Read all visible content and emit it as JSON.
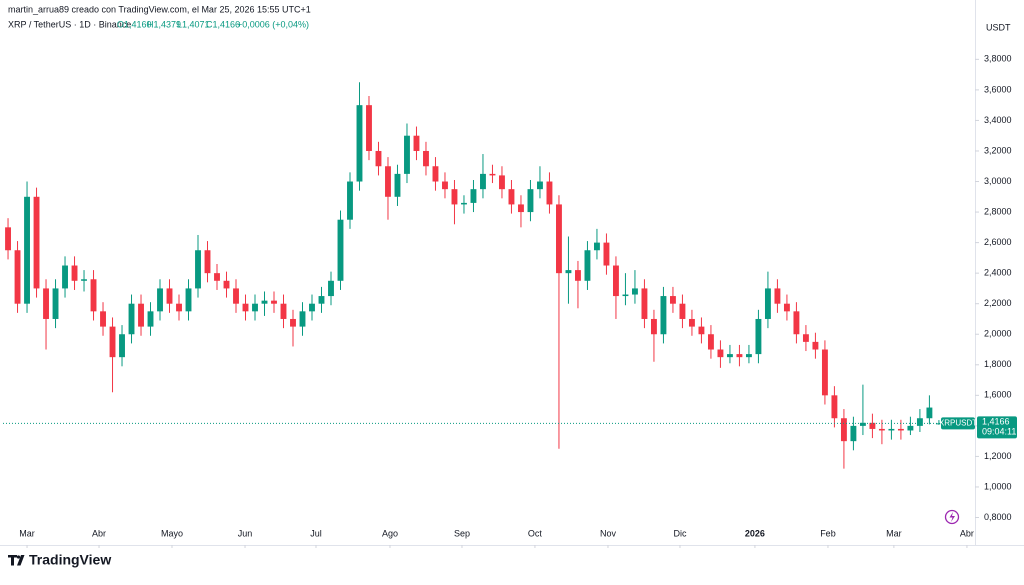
{
  "header": {
    "credit": "martin_arrua89 creado con TradingView.com, el Mar 25, 2026 15:55 UTC+1",
    "symbol": "XRP / TetherUS · 1D · Binance",
    "open": "O1,4160",
    "high": "H1,4379",
    "low": "L1,4071",
    "close": "C1,4166",
    "change": "+0,0006 (+0,04%)"
  },
  "chart_data": {
    "type": "candlestick",
    "currency": "USDT",
    "up_color": "#089981",
    "down_color": "#f23645",
    "ylim": [
      0.62,
      4.11
    ],
    "xlim": [
      -0.53,
      101.8
    ],
    "yticks": [
      {
        "value": 0.8,
        "label": "0,8000"
      },
      {
        "value": 1.0,
        "label": "1,0000"
      },
      {
        "value": 1.2,
        "label": "1,2000"
      },
      {
        "value": 1.4,
        "label": "1,4000"
      },
      {
        "value": 1.6,
        "label": "1,6000"
      },
      {
        "value": 1.8,
        "label": "1,8000"
      },
      {
        "value": 2.0,
        "label": "2,0000"
      },
      {
        "value": 2.2,
        "label": "2,2000"
      },
      {
        "value": 2.4,
        "label": "2,4000"
      },
      {
        "value": 2.6,
        "label": "2,6000"
      },
      {
        "value": 2.8,
        "label": "2,8000"
      },
      {
        "value": 3.0,
        "label": "3,0000"
      },
      {
        "value": 3.2,
        "label": "3,2000"
      },
      {
        "value": 3.4,
        "label": "3,4000"
      },
      {
        "value": 3.6,
        "label": "3,6000"
      },
      {
        "value": 3.8,
        "label": "3,8000"
      }
    ],
    "xticks": [
      {
        "value": 2.0,
        "label": "Mar"
      },
      {
        "value": 9.58,
        "label": "Abr"
      },
      {
        "value": 17.26,
        "label": "Mayo"
      },
      {
        "value": 24.95,
        "label": "Jun"
      },
      {
        "value": 32.42,
        "label": "Jul"
      },
      {
        "value": 40.21,
        "label": "Ago"
      },
      {
        "value": 47.79,
        "label": "Sep"
      },
      {
        "value": 55.47,
        "label": "Oct"
      },
      {
        "value": 63.16,
        "label": "Nov"
      },
      {
        "value": 70.74,
        "label": "Dic"
      },
      {
        "value": 78.63,
        "label": "2026"
      },
      {
        "value": 86.32,
        "label": "Feb"
      },
      {
        "value": 93.26,
        "label": "Mar"
      },
      {
        "value": 100.95,
        "label": "Abr"
      }
    ],
    "last_price": {
      "symbol": "XRPUSDT",
      "value": 1.4166,
      "label": "1,4166",
      "countdown": "09:04:11"
    },
    "candles": [
      [
        2.7,
        2.76,
        2.49,
        2.55
      ],
      [
        2.55,
        2.61,
        2.14,
        2.2
      ],
      [
        2.2,
        3.0,
        2.14,
        2.9
      ],
      [
        2.9,
        2.96,
        2.24,
        2.3
      ],
      [
        2.3,
        2.36,
        1.9,
        2.1
      ],
      [
        2.1,
        2.36,
        2.04,
        2.3
      ],
      [
        2.3,
        2.51,
        2.24,
        2.45
      ],
      [
        2.45,
        2.51,
        2.29,
        2.35
      ],
      [
        2.35,
        2.42,
        2.28,
        2.36
      ],
      [
        2.36,
        2.42,
        2.09,
        2.15
      ],
      [
        2.15,
        2.21,
        1.99,
        2.05
      ],
      [
        2.05,
        2.11,
        1.62,
        1.85
      ],
      [
        1.85,
        2.06,
        1.79,
        2.0
      ],
      [
        2.0,
        2.26,
        1.94,
        2.2
      ],
      [
        2.2,
        2.26,
        1.99,
        2.05
      ],
      [
        2.05,
        2.21,
        1.99,
        2.15
      ],
      [
        2.15,
        2.36,
        2.09,
        2.3
      ],
      [
        2.3,
        2.36,
        2.14,
        2.2
      ],
      [
        2.2,
        2.26,
        2.09,
        2.15
      ],
      [
        2.15,
        2.36,
        2.09,
        2.3
      ],
      [
        2.3,
        2.65,
        2.24,
        2.55
      ],
      [
        2.55,
        2.61,
        2.34,
        2.4
      ],
      [
        2.4,
        2.46,
        2.29,
        2.35
      ],
      [
        2.35,
        2.41,
        2.24,
        2.3
      ],
      [
        2.3,
        2.36,
        2.14,
        2.2
      ],
      [
        2.2,
        2.26,
        2.09,
        2.15
      ],
      [
        2.15,
        2.26,
        2.09,
        2.2
      ],
      [
        2.2,
        2.28,
        2.12,
        2.22
      ],
      [
        2.22,
        2.28,
        2.14,
        2.2
      ],
      [
        2.2,
        2.26,
        2.04,
        2.1
      ],
      [
        2.1,
        2.16,
        1.92,
        2.05
      ],
      [
        2.05,
        2.21,
        1.99,
        2.15
      ],
      [
        2.15,
        2.26,
        2.09,
        2.2
      ],
      [
        2.2,
        2.31,
        2.14,
        2.25
      ],
      [
        2.25,
        2.41,
        2.19,
        2.35
      ],
      [
        2.35,
        2.81,
        2.29,
        2.75
      ],
      [
        2.75,
        3.06,
        2.69,
        3.0
      ],
      [
        3.0,
        3.65,
        2.94,
        3.5
      ],
      [
        3.5,
        3.56,
        3.14,
        3.2
      ],
      [
        3.2,
        3.26,
        3.04,
        3.1
      ],
      [
        3.1,
        3.16,
        2.75,
        2.9
      ],
      [
        2.9,
        3.11,
        2.84,
        3.05
      ],
      [
        3.05,
        3.38,
        2.99,
        3.3
      ],
      [
        3.3,
        3.36,
        3.14,
        3.2
      ],
      [
        3.2,
        3.26,
        3.04,
        3.1
      ],
      [
        3.1,
        3.16,
        2.94,
        3.0
      ],
      [
        3.0,
        3.06,
        2.89,
        2.95
      ],
      [
        2.95,
        3.01,
        2.72,
        2.85
      ],
      [
        2.85,
        2.91,
        2.79,
        2.86
      ],
      [
        2.86,
        3.01,
        2.8,
        2.95
      ],
      [
        2.95,
        3.18,
        2.89,
        3.05
      ],
      [
        3.05,
        3.11,
        2.99,
        3.04
      ],
      [
        3.04,
        3.1,
        2.89,
        2.95
      ],
      [
        2.95,
        3.01,
        2.79,
        2.85
      ],
      [
        2.85,
        2.91,
        2.7,
        2.8
      ],
      [
        2.8,
        3.01,
        2.74,
        2.95
      ],
      [
        2.95,
        3.1,
        2.89,
        3.0
      ],
      [
        3.0,
        3.06,
        2.79,
        2.85
      ],
      [
        2.85,
        2.91,
        1.25,
        2.4
      ],
      [
        2.4,
        2.64,
        2.2,
        2.42
      ],
      [
        2.42,
        2.48,
        2.17,
        2.35
      ],
      [
        2.35,
        2.61,
        2.29,
        2.55
      ],
      [
        2.55,
        2.69,
        2.49,
        2.6
      ],
      [
        2.6,
        2.66,
        2.39,
        2.45
      ],
      [
        2.45,
        2.51,
        2.1,
        2.25
      ],
      [
        2.25,
        2.4,
        2.19,
        2.26
      ],
      [
        2.26,
        2.42,
        2.2,
        2.3
      ],
      [
        2.3,
        2.36,
        2.04,
        2.1
      ],
      [
        2.1,
        2.16,
        1.82,
        2.0
      ],
      [
        2.0,
        2.31,
        1.94,
        2.25
      ],
      [
        2.25,
        2.31,
        2.14,
        2.2
      ],
      [
        2.2,
        2.26,
        2.04,
        2.1
      ],
      [
        2.1,
        2.16,
        1.99,
        2.05
      ],
      [
        2.05,
        2.11,
        1.94,
        2.0
      ],
      [
        2.0,
        2.06,
        1.84,
        1.9
      ],
      [
        1.9,
        1.96,
        1.78,
        1.85
      ],
      [
        1.85,
        1.93,
        1.81,
        1.87
      ],
      [
        1.87,
        1.93,
        1.79,
        1.85
      ],
      [
        1.85,
        1.93,
        1.81,
        1.87
      ],
      [
        1.87,
        2.16,
        1.81,
        2.1
      ],
      [
        2.1,
        2.41,
        2.04,
        2.3
      ],
      [
        2.3,
        2.36,
        2.14,
        2.2
      ],
      [
        2.2,
        2.26,
        2.09,
        2.15
      ],
      [
        2.15,
        2.21,
        1.94,
        2.0
      ],
      [
        2.0,
        2.06,
        1.89,
        1.95
      ],
      [
        1.95,
        2.01,
        1.84,
        1.9
      ],
      [
        1.9,
        1.96,
        1.54,
        1.6
      ],
      [
        1.6,
        1.66,
        1.39,
        1.45
      ],
      [
        1.45,
        1.51,
        1.12,
        1.3
      ],
      [
        1.3,
        1.46,
        1.24,
        1.4
      ],
      [
        1.4,
        1.67,
        1.34,
        1.42
      ],
      [
        1.42,
        1.48,
        1.32,
        1.38
      ],
      [
        1.38,
        1.44,
        1.28,
        1.37
      ],
      [
        1.37,
        1.44,
        1.31,
        1.38
      ],
      [
        1.38,
        1.44,
        1.31,
        1.37
      ],
      [
        1.37,
        1.46,
        1.34,
        1.4
      ],
      [
        1.4,
        1.51,
        1.36,
        1.45
      ],
      [
        1.45,
        1.6,
        1.41,
        1.52
      ],
      [
        1.416,
        1.4379,
        1.4071,
        1.4166
      ]
    ]
  },
  "branding": "TradingView"
}
